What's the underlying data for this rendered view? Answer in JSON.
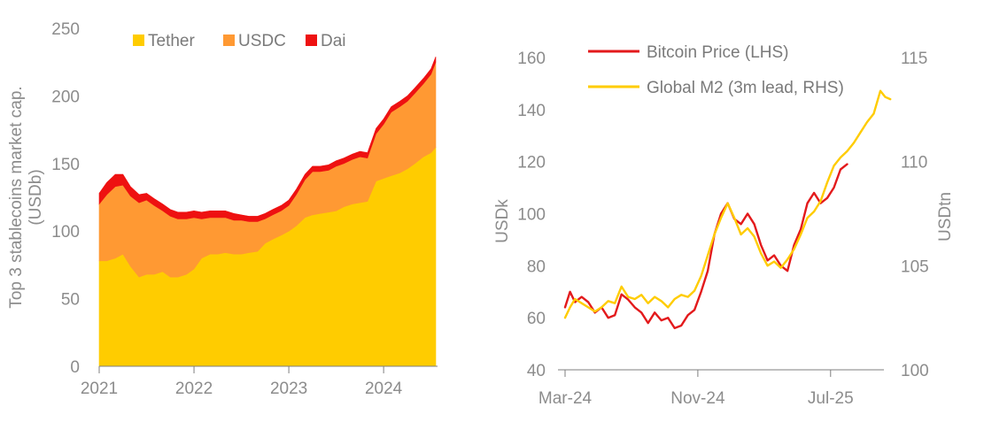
{
  "charts": {
    "left": {
      "type": "area",
      "stacked": true,
      "ylabel": "Top 3 stablecoins market cap. (USDb)",
      "ylabel_lines": [
        "Top 3 stablecoins market cap.",
        "(USDb)"
      ],
      "ylim": [
        0,
        250
      ],
      "yticks": [
        0,
        50,
        100,
        150,
        200,
        250
      ],
      "xlim": [
        2021.0,
        2024.55
      ],
      "xticks": [
        2021,
        2022,
        2023,
        2024
      ],
      "xtick_labels": [
        "2021",
        "2022",
        "2023",
        "2024"
      ],
      "legend": {
        "placement": "top",
        "items": [
          "Tether",
          "USDC",
          "Dai"
        ]
      },
      "colors": {
        "Tether": "#ffcc00",
        "USDC": "#ff9933",
        "Dai": "#ee1111"
      },
      "x": [
        2021.0,
        2021.08,
        2021.17,
        2021.25,
        2021.33,
        2021.42,
        2021.5,
        2021.58,
        2021.67,
        2021.75,
        2021.83,
        2021.92,
        2022.0,
        2022.08,
        2022.17,
        2022.25,
        2022.33,
        2022.42,
        2022.5,
        2022.58,
        2022.67,
        2022.75,
        2022.83,
        2022.92,
        2023.0,
        2023.08,
        2023.17,
        2023.25,
        2023.33,
        2023.42,
        2023.5,
        2023.58,
        2023.67,
        2023.75,
        2023.83,
        2023.92,
        2024.0,
        2024.08,
        2024.17,
        2024.25,
        2024.33,
        2024.42,
        2024.5,
        2024.55
      ],
      "series": [
        {
          "name": "Tether",
          "values": [
            78,
            78,
            80,
            83,
            74,
            66,
            68,
            68,
            70,
            66,
            66,
            68,
            72,
            80,
            83,
            83,
            84,
            83,
            83,
            84,
            85,
            91,
            94,
            97,
            100,
            104,
            110,
            112,
            113,
            114,
            115,
            118,
            120,
            121,
            122,
            137,
            139,
            141,
            143,
            146,
            150,
            155,
            158,
            162
          ]
        },
        {
          "name": "USDC",
          "values": [
            42,
            49,
            53,
            51,
            52,
            55,
            55,
            51,
            45,
            45,
            43,
            41,
            38,
            29,
            27,
            27,
            26,
            25,
            25,
            23,
            22,
            18,
            18,
            18,
            19,
            23,
            28,
            32,
            31,
            31,
            33,
            32,
            33,
            34,
            32,
            35,
            40,
            47,
            49,
            50,
            52,
            54,
            58,
            63
          ]
        },
        {
          "name": "Dai",
          "values": [
            8,
            9,
            9,
            8,
            7,
            6,
            5,
            5,
            5,
            5,
            5,
            5,
            5,
            5,
            5,
            5,
            5,
            5,
            4,
            4,
            4,
            4,
            4,
            4,
            4,
            4,
            4,
            4,
            4,
            4,
            4,
            4,
            4,
            4,
            4,
            4,
            4,
            4,
            4,
            4,
            4,
            4,
            4,
            4
          ]
        }
      ]
    },
    "right": {
      "type": "line",
      "ylabel_left": "USDk",
      "ylabel_right": "USDtn",
      "ylim_left": [
        40,
        160
      ],
      "yticks_left": [
        40,
        60,
        80,
        100,
        120,
        140,
        160
      ],
      "ylim_right": [
        100,
        115
      ],
      "yticks_right": [
        100,
        105,
        110,
        115
      ],
      "xlim": [
        0,
        19
      ],
      "xticks": [
        0,
        8,
        16
      ],
      "xtick_labels": [
        "Mar-24",
        "Nov-24",
        "Jul-25"
      ],
      "legend": {
        "placement": "top",
        "items": [
          "Bitcoin Price (LHS)",
          "Global M2 (3m lead, RHS)"
        ]
      },
      "colors": {
        "Bitcoin Price (LHS)": "#e31a1c",
        "Global M2 (3m lead, RHS)": "#ffcc00"
      },
      "series": [
        {
          "name": "Bitcoin Price (LHS)",
          "axis": "left",
          "x": [
            0.0,
            0.3,
            0.6,
            1.0,
            1.4,
            1.8,
            2.2,
            2.6,
            3.0,
            3.4,
            3.8,
            4.2,
            4.6,
            5.0,
            5.4,
            5.8,
            6.2,
            6.6,
            7.0,
            7.4,
            7.8,
            8.2,
            8.6,
            9.0,
            9.4,
            9.8,
            10.2,
            10.6,
            11.0,
            11.4,
            11.8,
            12.2,
            12.6,
            13.0,
            13.4,
            13.8,
            14.2,
            14.6,
            15.0,
            15.4,
            15.8,
            16.2,
            16.6,
            17.0
          ],
          "y": [
            64,
            70,
            66,
            68,
            66,
            62,
            64,
            60,
            61,
            69,
            67,
            64,
            62,
            58,
            62,
            59,
            60,
            56,
            57,
            61,
            63,
            70,
            78,
            92,
            100,
            104,
            98,
            96,
            100,
            96,
            88,
            82,
            84,
            80,
            78,
            88,
            94,
            104,
            108,
            104,
            106,
            110,
            117,
            119
          ]
        },
        {
          "name": "Global M2 (3m lead, RHS)",
          "axis": "right",
          "x": [
            0.0,
            0.3,
            0.6,
            1.0,
            1.4,
            1.8,
            2.2,
            2.6,
            3.0,
            3.4,
            3.8,
            4.2,
            4.6,
            5.0,
            5.4,
            5.8,
            6.2,
            6.6,
            7.0,
            7.4,
            7.8,
            8.2,
            8.6,
            9.0,
            9.4,
            9.8,
            10.2,
            10.6,
            11.0,
            11.4,
            11.8,
            12.2,
            12.6,
            13.0,
            13.4,
            13.8,
            14.2,
            14.6,
            15.0,
            15.4,
            15.8,
            16.2,
            16.6,
            17.0,
            17.4,
            17.8,
            18.2,
            18.6,
            19.0,
            19.3,
            19.6
          ],
          "y": [
            102.5,
            103.0,
            103.4,
            103.2,
            103.0,
            102.8,
            103.0,
            103.3,
            103.2,
            104.0,
            103.5,
            103.4,
            103.6,
            103.2,
            103.5,
            103.3,
            103.0,
            103.4,
            103.6,
            103.5,
            103.8,
            104.5,
            105.5,
            106.5,
            107.3,
            108.0,
            107.3,
            106.5,
            106.8,
            106.4,
            105.6,
            105.0,
            105.2,
            104.9,
            105.3,
            105.8,
            106.5,
            107.3,
            107.6,
            108.1,
            109.0,
            109.8,
            110.2,
            110.5,
            110.9,
            111.4,
            111.9,
            112.3,
            113.4,
            113.1,
            113.0
          ]
        }
      ]
    }
  }
}
